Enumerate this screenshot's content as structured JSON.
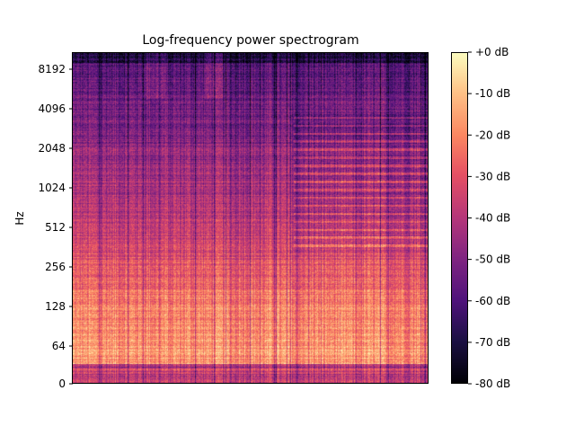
{
  "chart_data": {
    "type": "heatmap",
    "title": "Log-frequency power spectrogram",
    "ylabel": "Hz",
    "xlabel": "",
    "y_scale": "log2 (symlog near 0)",
    "y_ticks": [
      "0",
      "64",
      "128",
      "256",
      "512",
      "1024",
      "2048",
      "4096",
      "8192"
    ],
    "colorbar": {
      "colormap": "magma",
      "range_db": [
        -80,
        0
      ],
      "ticks": [
        "+0 dB",
        "-10 dB",
        "-20 dB",
        "-30 dB",
        "-40 dB",
        "-50 dB",
        "-60 dB",
        "-70 dB",
        "-80 dB"
      ]
    },
    "grid": false,
    "legend": "none",
    "description_hint": "Strong energy below 256 Hz (about -10 to -25 dB), fading to about -55 to -70 dB above 4096 Hz; horizontal harmonic stripes in the right third between 512 and 4096 Hz; vertical onset streaks throughout."
  }
}
